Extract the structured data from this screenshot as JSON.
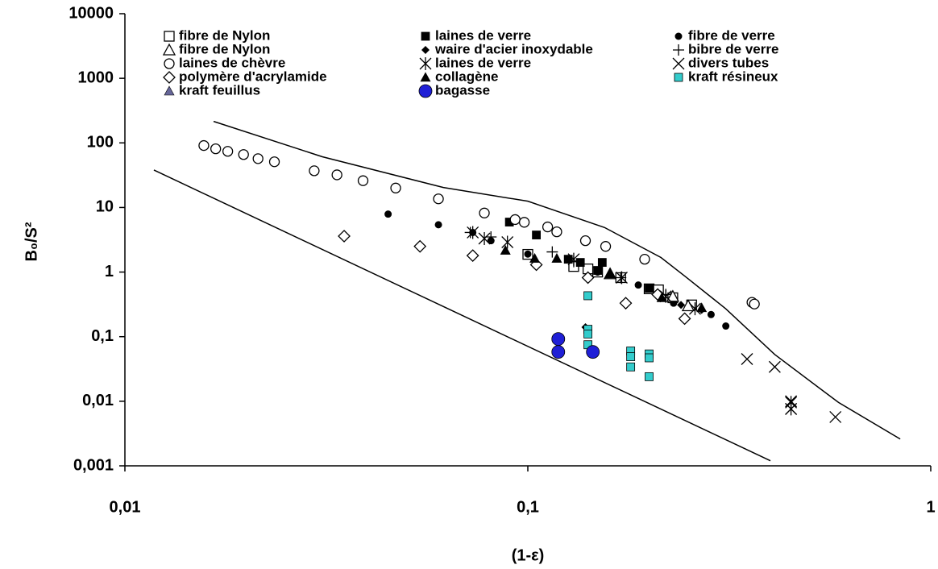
{
  "chart_data": {
    "type": "scatter",
    "x_label": "(1-ε)",
    "y_label": "B₀/S²",
    "xscale": "log",
    "yscale": "log",
    "xlim": [
      0.01,
      1
    ],
    "ylim": [
      0.001,
      10000
    ],
    "xticks": [
      {
        "value": 0.01,
        "label": "0,01"
      },
      {
        "value": 0.1,
        "label": "0,1"
      },
      1
    ],
    "yticks": [
      {
        "value": 0.001,
        "label": "0,001"
      },
      {
        "value": 0.01,
        "label": "0,01"
      },
      {
        "value": 0.1,
        "label": "0,1"
      },
      1,
      10,
      100,
      1000,
      10000
    ],
    "legend": "top",
    "series": [
      {
        "name": "fibre de Nylon",
        "marker": "square-open",
        "color": "#000000",
        "x": [
          0.1,
          0.13,
          0.141,
          0.149,
          0.17,
          0.2,
          0.211,
          0.229,
          0.255
        ],
        "values": [
          1.88,
          1.22,
          1.12,
          1.0,
          0.82,
          0.55,
          0.53,
          0.4,
          0.31
        ]
      },
      {
        "name": "laines de verre",
        "marker": "square",
        "color": "#000000",
        "x": [
          0.09,
          0.105,
          0.126,
          0.135,
          0.153,
          0.149,
          0.2
        ],
        "values": [
          5.94,
          3.75,
          1.58,
          1.41,
          1.41,
          1.06,
          0.56
        ]
      },
      {
        "name": "fibre de verre",
        "marker": "circle",
        "color": "#000000",
        "x": [
          0.045,
          0.06,
          0.073,
          0.081,
          0.1,
          0.149,
          0.188,
          0.23,
          0.285,
          0.31
        ],
        "values": [
          7.9,
          5.4,
          4.1,
          3.06,
          1.9,
          1.0,
          0.63,
          0.33,
          0.22,
          0.146
        ]
      },
      {
        "name": "fibre de Nylon",
        "marker": "triangle-open",
        "color": "#000000",
        "x": [
          0.16,
          0.229,
          0.25
        ],
        "values": [
          0.94,
          0.42,
          0.3
        ]
      },
      {
        "name": "waire d'acier inoxydable",
        "marker": "diamond",
        "color": "#000000",
        "x": [
          0.21,
          0.24,
          0.139,
          0.27
        ],
        "values": [
          0.47,
          0.31,
          0.14,
          0.26
        ]
      },
      {
        "name": "bibre de verre",
        "marker": "plus",
        "color": "#000000",
        "x": [
          0.072,
          0.081,
          0.115,
          0.13,
          0.17,
          0.22
        ],
        "values": [
          4.1,
          3.5,
          2.05,
          1.45,
          0.82,
          0.45
        ]
      },
      {
        "name": "laines de chèvre",
        "marker": "circle-open",
        "color": "#000000",
        "x": [
          0.0157,
          0.0168,
          0.018,
          0.0197,
          0.0214,
          0.0235,
          0.0295,
          0.0336,
          0.039,
          0.047,
          0.06,
          0.078,
          0.093,
          0.098,
          0.112,
          0.118,
          0.139,
          0.156,
          0.195,
          0.36,
          0.365
        ],
        "values": [
          91,
          81,
          74,
          66,
          57,
          51,
          37,
          32,
          26,
          20,
          13.6,
          8.2,
          6.5,
          5.9,
          5.0,
          4.2,
          3.06,
          2.5,
          1.58,
          0.34,
          0.32
        ]
      },
      {
        "name": "laines de verre",
        "marker": "asterisk",
        "color": "#000000",
        "x": [
          0.073,
          0.078,
          0.089,
          0.13,
          0.171,
          0.22,
          0.26,
          0.45,
          0.45
        ],
        "values": [
          4.1,
          3.3,
          2.9,
          1.58,
          0.82,
          0.42,
          0.27,
          0.0096,
          0.0076
        ]
      },
      {
        "name": "divers tubes",
        "marker": "x",
        "color": "#000000",
        "x": [
          0.35,
          0.41,
          0.45,
          0.45,
          0.58
        ],
        "values": [
          0.045,
          0.034,
          0.01,
          0.0076,
          0.0057
        ]
      },
      {
        "name": "polymère d'acrylamide",
        "marker": "diamond-open",
        "color": "#000000",
        "x": [
          0.035,
          0.054,
          0.073,
          0.105,
          0.141,
          0.175,
          0.21,
          0.245
        ],
        "values": [
          3.6,
          2.5,
          1.8,
          1.3,
          0.82,
          0.33,
          0.45,
          0.19
        ]
      },
      {
        "name": "collagène",
        "marker": "triangle",
        "color": "#000000",
        "x": [
          0.088,
          0.104,
          0.118,
          0.16,
          0.215,
          0.27
        ],
        "values": [
          2.17,
          1.63,
          1.63,
          0.94,
          0.4,
          0.28
        ]
      },
      {
        "name": "kraft résineux",
        "marker": "square",
        "color": "#33cccc",
        "x": [
          0.141,
          0.141,
          0.141,
          0.141,
          0.18,
          0.18,
          0.18,
          0.2,
          0.2,
          0.2
        ],
        "values": [
          0.43,
          0.13,
          0.11,
          0.075,
          0.06,
          0.049,
          0.034,
          0.054,
          0.047,
          0.024
        ]
      },
      {
        "name": "kraft feuillus",
        "marker": "triangle",
        "color": "#666699",
        "x": [],
        "values": []
      },
      {
        "name": "bagasse",
        "marker": "circle-big",
        "color": "#1f1fd6",
        "x": [
          0.119,
          0.119,
          0.145
        ],
        "values": [
          0.092,
          0.058,
          0.058
        ]
      }
    ],
    "reference_lines": [
      {
        "color": "#000000",
        "x": [
          0.0166,
          0.0309,
          0.0617,
          0.1,
          0.155,
          0.214,
          0.245,
          0.31,
          0.41,
          0.59,
          0.84
        ],
        "y": [
          215,
          61,
          20.4,
          12.5,
          4.9,
          1.68,
          0.87,
          0.27,
          0.053,
          0.0096,
          0.0026
        ]
      },
      {
        "color": "#000000",
        "x": [
          0.0118,
          0.4
        ],
        "y": [
          38,
          0.0012
        ]
      }
    ]
  }
}
